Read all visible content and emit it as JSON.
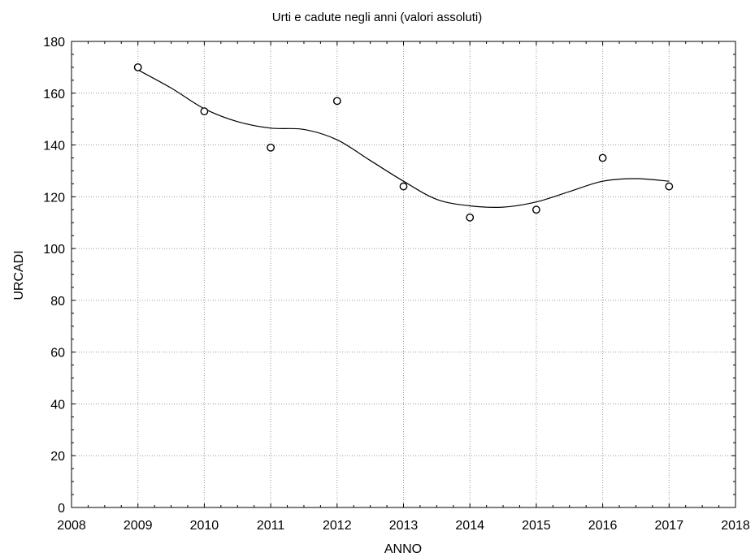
{
  "chart_data": {
    "type": "scatter",
    "title": "Urti e cadute negli anni (valori assoluti)",
    "xlabel": "ANNO",
    "ylabel": "URCADI",
    "xlim": [
      2008,
      2018
    ],
    "ylim": [
      0,
      180
    ],
    "x_ticks": [
      "2008",
      "2009",
      "2010",
      "2011",
      "2012",
      "2013",
      "2014",
      "2015",
      "2016",
      "2017",
      "2018"
    ],
    "y_ticks": [
      "0",
      "20",
      "40",
      "60",
      "80",
      "100",
      "120",
      "140",
      "160",
      "180"
    ],
    "grid": true,
    "series": [
      {
        "points": [
          {
            "x": 2009,
            "y": 170
          },
          {
            "x": 2010,
            "y": 153
          },
          {
            "x": 2011,
            "y": 139
          },
          {
            "x": 2012,
            "y": 157
          },
          {
            "x": 2013,
            "y": 124
          },
          {
            "x": 2014,
            "y": 112
          },
          {
            "x": 2015,
            "y": 115
          },
          {
            "x": 2016,
            "y": 135
          },
          {
            "x": 2017,
            "y": 124
          }
        ]
      }
    ],
    "smooth_fit": {
      "x": [
        2009,
        2009.5,
        2010,
        2010.5,
        2011,
        2011.5,
        2012,
        2012.5,
        2013,
        2013.5,
        2014,
        2014.5,
        2015,
        2015.5,
        2016,
        2016.5,
        2017
      ],
      "y": [
        169,
        162,
        154,
        149,
        146.5,
        146,
        142,
        134,
        126,
        119,
        116.5,
        116,
        118,
        122,
        126,
        127,
        126
      ]
    },
    "marker_color": "#000000",
    "line_color": "#000000",
    "grid_color": "#999999"
  }
}
